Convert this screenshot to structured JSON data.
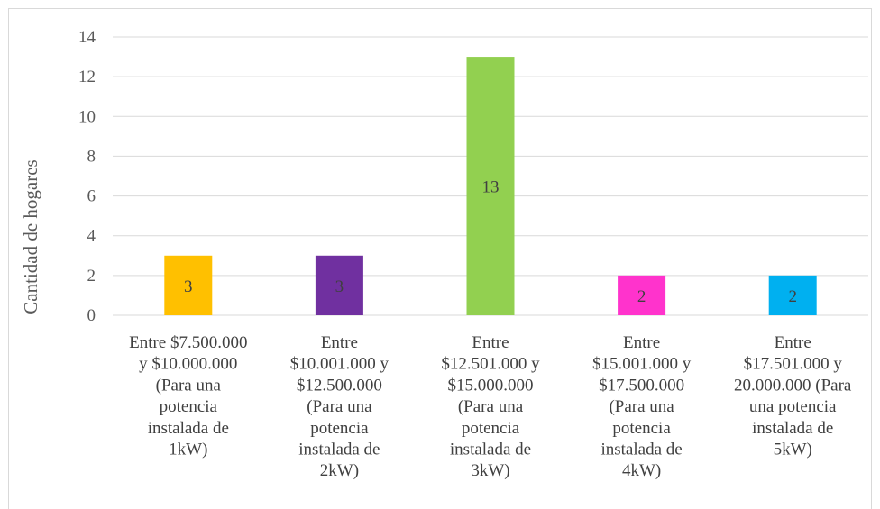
{
  "chart_data": {
    "type": "bar",
    "categories": [
      [
        "Entre $7.500.000",
        "y $10.000.000",
        "(Para una",
        "potencia",
        "instalada de",
        "1kW)"
      ],
      [
        "Entre",
        "$10.001.000 y",
        "$12.500.000",
        "(Para una",
        "potencia",
        "instalada de",
        "2kW)"
      ],
      [
        "Entre",
        "$12.501.000 y",
        "$15.000.000",
        "(Para una",
        "potencia",
        "instalada de",
        "3kW)"
      ],
      [
        "Entre",
        "$15.001.000 y",
        "$17.500.000",
        "(Para una",
        "potencia",
        "instalada de",
        "4kW)"
      ],
      [
        "Entre",
        "$17.501.000 y",
        "20.000.000 (Para",
        "una potencia",
        "instalada de",
        "5kW)"
      ]
    ],
    "values": [
      3,
      3,
      13,
      2,
      2
    ],
    "data_labels": [
      "3",
      "3",
      "13",
      "2",
      "2"
    ],
    "bar_colors": [
      "#ffc000",
      "#7030a0",
      "#92d050",
      "#ff33cc",
      "#00b0f0"
    ],
    "xlabel": "",
    "ylabel": "Cantidad de hogares",
    "ylim": [
      0,
      14
    ],
    "yticks": [
      0,
      2,
      4,
      6,
      8,
      10,
      12,
      14
    ],
    "grid": true,
    "gridline_color": "#d9d9d9"
  }
}
